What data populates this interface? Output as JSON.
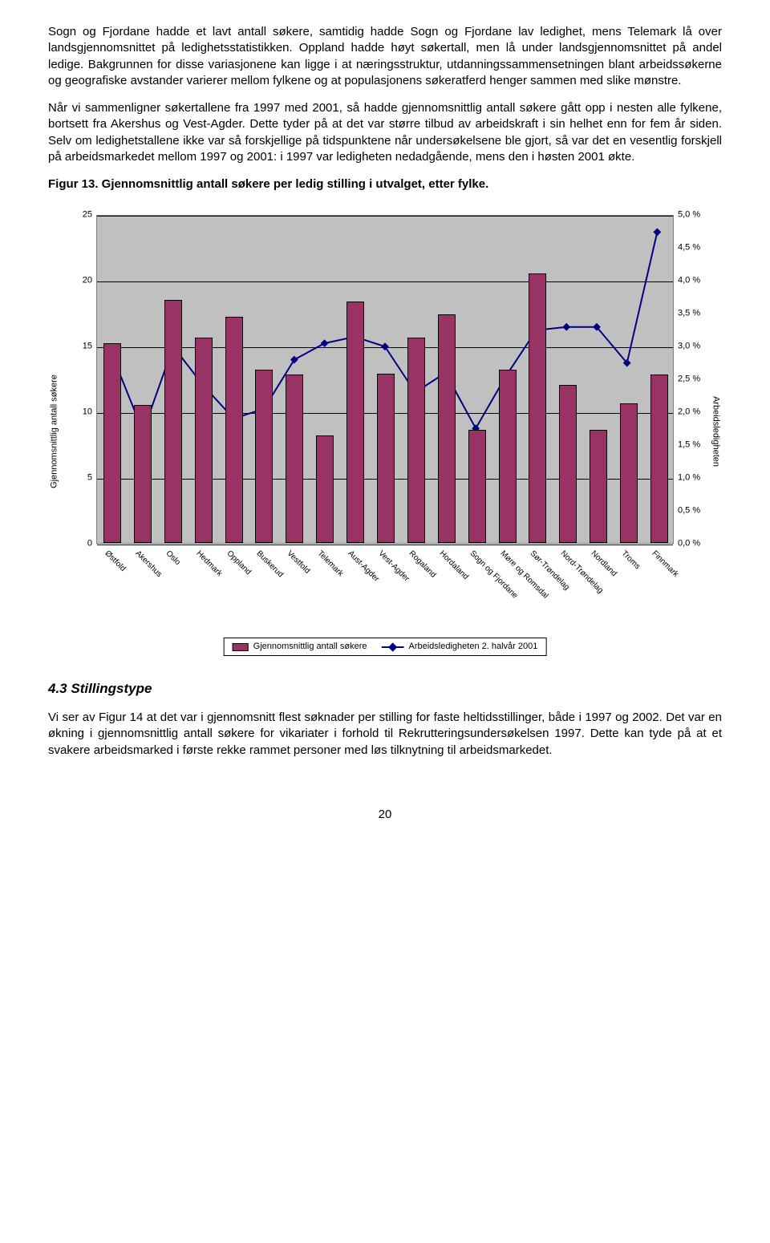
{
  "paragraphs": {
    "p1": "Sogn og Fjordane hadde et lavt antall søkere, samtidig hadde Sogn og Fjordane lav ledighet, mens Telemark lå over landsgjennomsnittet på ledighetsstatistikken. Oppland hadde høyt søkertall, men lå under landsgjennomsnittet på andel ledige. Bakgrunnen for disse variasjonene kan ligge i at næringsstruktur, utdanningssammensetningen blant arbeidssøkerne og geografiske avstander varierer mellom fylkene og at populasjonens søkeratferd henger sammen med slike mønstre.",
    "p2": "Når vi sammenligner søkertallene fra 1997 med 2001, så hadde gjennomsnittlig antall søkere gått opp i nesten alle fylkene, bortsett fra Akershus og Vest-Agder. Dette tyder på at det var større tilbud av arbeidskraft i sin helhet enn for fem år siden. Selv om ledighetstallene ikke var så forskjellige på tidspunktene når undersøkelsene ble gjort, så var det en vesentlig forskjell på arbeidsmarkedet mellom 1997 og 2001: i 1997 var ledigheten nedadgående, mens den i høsten 2001 økte.",
    "p3": "Vi ser av Figur 14 at det var i gjennomsnitt flest søknader per stilling for faste heltidsstillinger, både i 1997 og 2002. Det var en økning i gjennomsnittlig antall søkere for vikariater i forhold til Rekrutteringsundersøkelsen 1997. Dette kan tyde på at et svakere arbeidsmarked i første rekke rammet personer med løs tilknytning til arbeidsmarkedet."
  },
  "fig_title": "Figur 13. Gjennomsnittlig antall søkere per ledig stilling i utvalget, etter fylke.",
  "section_head": "4.3  Stillingstype",
  "page_number": "20",
  "chart": {
    "type": "combo-bar-line",
    "plot_background": "#c0c0c0",
    "grid_color": "#000000",
    "bar_color": "#993366",
    "bar_border": "#000000",
    "line_color": "#000080",
    "marker_color": "#000080",
    "y1_title": "Gjennomsnittlig antall søkere",
    "y2_title": "Arbeidsledigheten",
    "y1_ticks": [
      "0",
      "5",
      "10",
      "15",
      "20",
      "25"
    ],
    "y1_max": 25,
    "y2_ticks": [
      "0,0 %",
      "0,5 %",
      "1,0 %",
      "1,5 %",
      "2,0 %",
      "2,5 %",
      "3,0 %",
      "3,5 %",
      "4,0 %",
      "4,5 %",
      "5,0 %"
    ],
    "y2_max": 5.0,
    "categories": [
      "Østfold",
      "Akershus",
      "Oslo",
      "Hedmark",
      "Oppland",
      "Buskerud",
      "Vestfold",
      "Telemark",
      "Aust-Agder",
      "Vest-Agder",
      "Rogaland",
      "Hordaland",
      "Sogn og Fjordane",
      "Møre og Romsdal",
      "Sør-Trøndelag",
      "Nord-Trøndelag",
      "Nordland",
      "Troms",
      "Finnmark"
    ],
    "bar_values": [
      15.2,
      10.5,
      18.5,
      15.6,
      17.2,
      13.2,
      12.8,
      8.2,
      18.4,
      12.9,
      15.6,
      17.4,
      8.6,
      13.2,
      20.5,
      12.0,
      8.6,
      10.6,
      12.8
    ],
    "line_values": [
      2.85,
      1.7,
      3.0,
      2.4,
      1.9,
      2.05,
      2.8,
      3.05,
      3.15,
      3.0,
      2.3,
      2.6,
      1.75,
      2.55,
      3.25,
      3.3,
      3.3,
      2.75,
      4.75
    ],
    "legend": {
      "bar_label": "Gjennomsnittlig antall søkere",
      "line_label": "Arbeidsledigheten 2. halvår 2001"
    }
  }
}
